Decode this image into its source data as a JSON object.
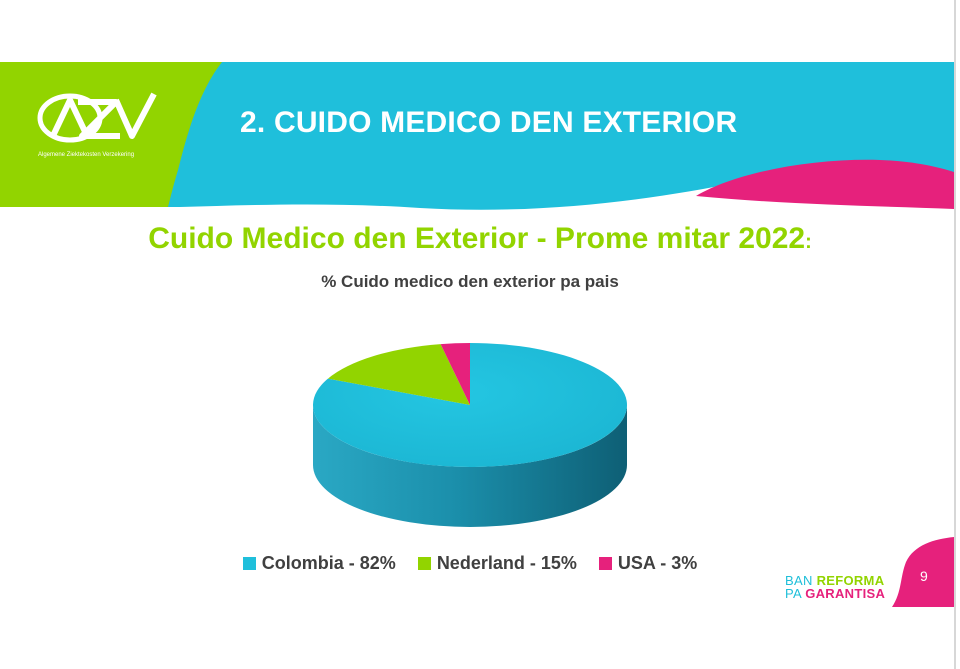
{
  "header": {
    "logo_text": "AZV",
    "logo_tagline": "Algemene Ziektekosten Verzekering",
    "title": "2. CUIDO MEDICO DEN EXTERIOR"
  },
  "chart_data": {
    "type": "pie",
    "style": "3d",
    "title": "Cuido Medico den Exterior - Prome mitar 2022",
    "title_suffix": ":",
    "subtitle": "% Cuido medico den exterior pa pais",
    "start_angle_deg": 0,
    "direction": "clockwise",
    "legend_position": "bottom",
    "slices": [
      {
        "label": "Colombia - 82%",
        "name": "Colombia",
        "value": 82,
        "color": "#1fbfdb"
      },
      {
        "label": "Nederland - 15%",
        "name": "Nederland",
        "value": 15,
        "color": "#92d400"
      },
      {
        "label": "USA - 3%",
        "name": "USA",
        "value": 3,
        "color": "#e6217c"
      }
    ]
  },
  "footer": {
    "brand_line1_light": "BAN",
    "brand_line1_strong": "REFORMA",
    "brand_line2_light": "PA",
    "brand_line2_strong": "GARANTISA",
    "page_number": "9"
  },
  "colors": {
    "cyan": "#1fbfdb",
    "green": "#92d400",
    "pink": "#e6217c",
    "text_dark": "#404040"
  }
}
